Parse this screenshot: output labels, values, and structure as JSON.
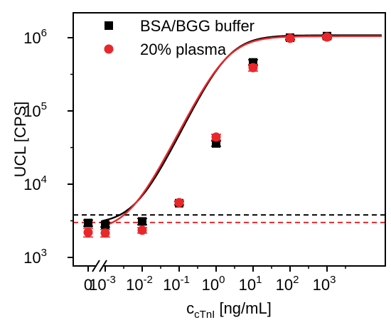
{
  "chart_data": {
    "type": "scatter",
    "xscale": "log",
    "yscale": "log",
    "xlim": [
      0.0003,
      3000
    ],
    "ylim": [
      800,
      1600000
    ],
    "xlabel": {
      "main": "c",
      "sub": "cTnI",
      "unit": "[ng/mL]"
    },
    "ylabel": "UCL [CPS]",
    "x_ticks": [
      {
        "value": 0,
        "base": "0",
        "exp": ""
      },
      {
        "value": 0.001,
        "base": "10",
        "exp": "-3"
      },
      {
        "value": 0.01,
        "base": "10",
        "exp": "-2"
      },
      {
        "value": 0.1,
        "base": "10",
        "exp": "-1"
      },
      {
        "value": 1,
        "base": "10",
        "exp": "0"
      },
      {
        "value": 10,
        "base": "10",
        "exp": "1"
      },
      {
        "value": 100,
        "base": "10",
        "exp": "2"
      },
      {
        "value": 1000,
        "base": "10",
        "exp": "3"
      }
    ],
    "y_ticks": [
      {
        "value": 1000,
        "base": "10",
        "exp": "3"
      },
      {
        "value": 10000,
        "base": "10",
        "exp": "4"
      },
      {
        "value": 100000,
        "base": "10",
        "exp": "5"
      },
      {
        "value": 1000000,
        "base": "10",
        "exp": "6"
      }
    ],
    "axis_break": true,
    "legend_position": "top-left",
    "series": [
      {
        "name": "BSA/BGG buffer",
        "marker": "square",
        "color": "#000000",
        "x": [
          0,
          0.001,
          0.01,
          0.1,
          1,
          10,
          100,
          1000
        ],
        "y": [
          2950,
          2800,
          3100,
          5500,
          36000,
          460000,
          1000000,
          1050000
        ],
        "err": [
          280,
          200,
          300,
          300,
          3000,
          40000,
          50000,
          50000
        ],
        "fit": {
          "bottom": 2850,
          "top": 1080000,
          "ec50": 2.0,
          "hill": 1.05
        },
        "threshold": 3800
      },
      {
        "name": "20% plasma",
        "marker": "circle",
        "color": "#e8272b",
        "x": [
          0,
          0.001,
          0.01,
          0.1,
          1,
          10,
          100,
          1000
        ],
        "y": [
          2200,
          2150,
          2350,
          5600,
          44000,
          390000,
          980000,
          1020000
        ],
        "err": [
          300,
          250,
          200,
          300,
          4000,
          40000,
          60000,
          60000
        ],
        "fit": {
          "bottom": 2250,
          "top": 1050000,
          "ec50": 1.9,
          "hill": 1.02
        },
        "threshold": 3000
      }
    ]
  }
}
